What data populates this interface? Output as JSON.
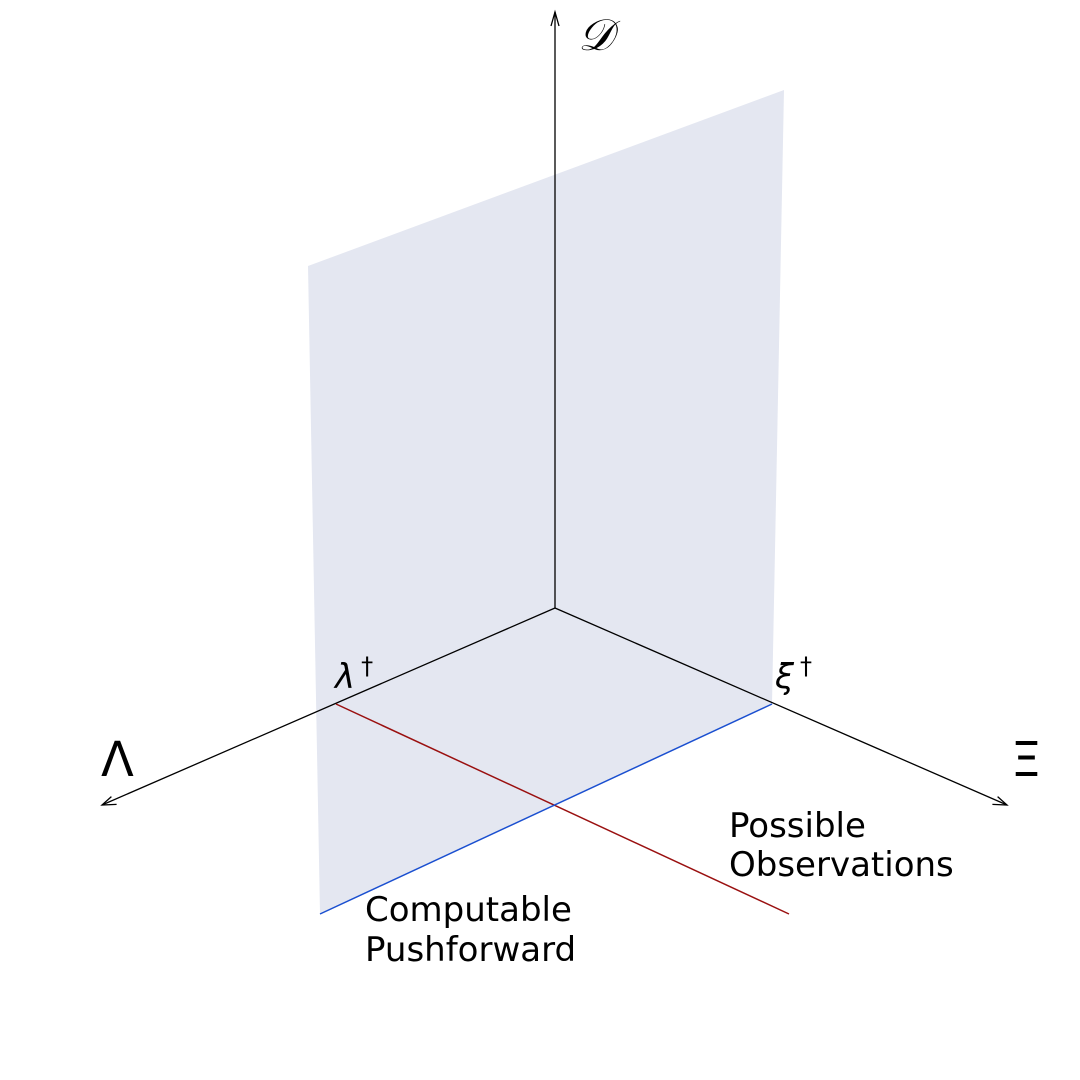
{
  "axes": {
    "vertical_label": "𝒟",
    "left_label": "Λ",
    "right_label": "Ξ"
  },
  "points": {
    "lambda_label": "λ",
    "lambda_sup": "†",
    "xi_label": "ξ",
    "xi_sup": "†"
  },
  "annotations": {
    "computable": [
      "Computable",
      "Pushforward"
    ],
    "possible": [
      "Possible",
      "Observations"
    ]
  },
  "colors": {
    "plane_fill": "#e4e7f1",
    "blue_line": "#1a4fd0",
    "red_line": "#9a1010",
    "axis": "#000000"
  }
}
